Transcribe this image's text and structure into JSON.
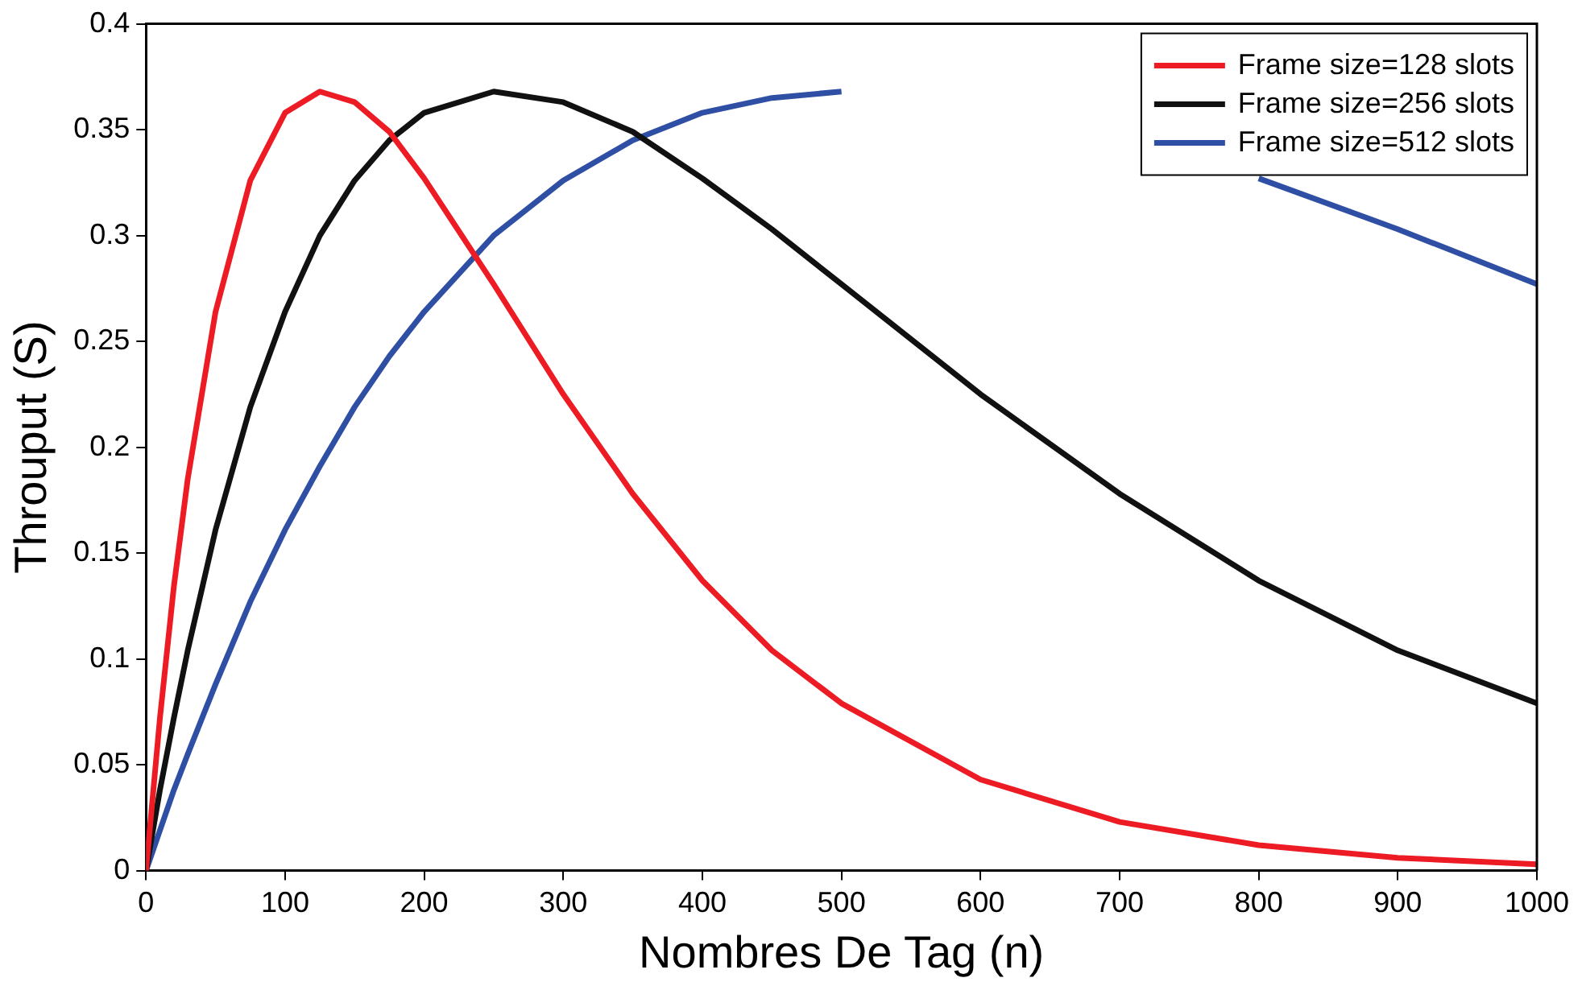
{
  "chart_data": {
    "type": "line",
    "xlabel": "Nombres De Tag (n)",
    "ylabel": "Throuput (S)",
    "x": [
      0,
      10,
      20,
      30,
      50,
      75,
      100,
      125,
      150,
      175,
      200,
      250,
      300,
      350,
      400,
      450,
      500,
      600,
      700,
      800,
      900,
      1000
    ],
    "series": [
      {
        "name": "Frame size=128 slots",
        "color": "#ed1c24",
        "values": [
          0,
          0.072,
          0.134,
          0.185,
          0.264,
          0.326,
          0.358,
          0.368,
          0.363,
          0.349,
          0.327,
          0.277,
          0.225,
          0.178,
          0.137,
          0.104,
          0.079,
          0.043,
          0.023,
          0.012,
          0.006,
          0.003
        ]
      },
      {
        "name": "Frame size=256 slots",
        "color": "#111111",
        "values": [
          0,
          0.038,
          0.072,
          0.104,
          0.161,
          0.219,
          0.264,
          0.3,
          0.326,
          0.345,
          0.358,
          0.368,
          0.363,
          0.349,
          0.327,
          0.303,
          0.277,
          0.225,
          0.178,
          0.137,
          0.104,
          0.079
        ]
      },
      {
        "name": "Frame size=512 slots",
        "color": "#2e4fa3",
        "values": [
          0,
          0.019,
          0.038,
          0.055,
          0.088,
          0.127,
          0.161,
          0.191,
          0.219,
          0.243,
          0.264,
          0.3,
          0.326,
          0.345,
          0.358,
          0.365,
          0.368,
          null,
          null,
          0.327,
          0.303,
          0.277
        ]
      }
    ],
    "xlim": [
      0,
      1000
    ],
    "xticks": [
      0,
      100,
      200,
      300,
      400,
      500,
      600,
      700,
      800,
      900,
      1000
    ],
    "ylim": [
      0,
      0.4
    ],
    "yticks": [
      0,
      0.05,
      0.1,
      0.15,
      0.2,
      0.25,
      0.3,
      0.35,
      0.4
    ],
    "grid": false,
    "legend": "top right",
    "marker": "none",
    "line_style": "solid"
  }
}
